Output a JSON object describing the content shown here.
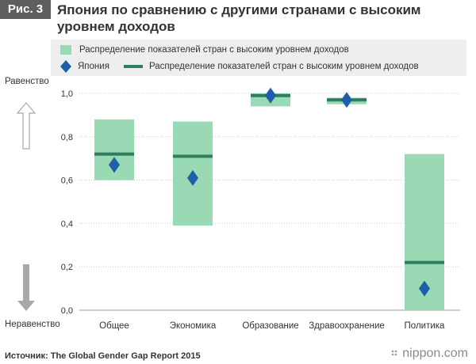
{
  "header": {
    "figure_label": "Рис. 3",
    "title": "Япония по сравнению с другими странами с высоким уровнем доходов"
  },
  "legend": {
    "range_label": "Распределение показателей стран с высоким уровнем доходов",
    "japan_label": "Япония",
    "median_label": "Распределение показателей стран с высоким уровнем доходов"
  },
  "side_labels": {
    "top": "Равенство",
    "bottom": "Неравенство"
  },
  "footer": {
    "source": "Источник: The Global Gender Gap Report 2015",
    "logo": "nippon.com"
  },
  "colors": {
    "range": "#99d9b3",
    "median": "#2e7d5e",
    "japan": "#1f5faa",
    "arrow_top": "#ffffff",
    "arrow_bottom": "#a8a8a8"
  },
  "chart_data": {
    "type": "bar",
    "categories": [
      "Общее",
      "Экономика",
      "Образование",
      "Здравоохранение",
      "Политика"
    ],
    "ylim": [
      0,
      1.0
    ],
    "yticks": [
      0,
      0.2,
      0.4,
      0.6,
      0.8,
      1.0
    ],
    "ytick_labels": [
      "0,0",
      "0,2",
      "0,4",
      "0,6",
      "0,8",
      "1,0"
    ],
    "series": [
      {
        "name": "Распределение показателей стран с высоким уровнем доходов",
        "type": "range",
        "low": [
          0.6,
          0.39,
          0.94,
          0.95,
          0.0
        ],
        "high": [
          0.88,
          0.87,
          1.0,
          0.98,
          0.72
        ]
      },
      {
        "name": "Распределение показателей стран с высоким уровнем доходов",
        "type": "median",
        "values": [
          0.72,
          0.71,
          0.99,
          0.97,
          0.22
        ]
      },
      {
        "name": "Япония",
        "type": "point",
        "values": [
          0.67,
          0.61,
          0.99,
          0.97,
          0.1
        ]
      }
    ],
    "grid": true
  }
}
